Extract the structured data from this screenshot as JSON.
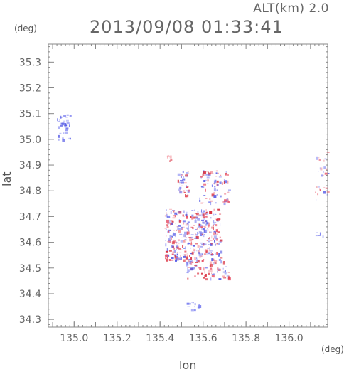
{
  "header": {
    "altitude": "ALT(km) 2.0",
    "datetime": "2013/09/08 01:33:41"
  },
  "axes": {
    "x_unit": "(deg)",
    "y_unit": "(deg)",
    "x_label": "lon",
    "y_label": "lat",
    "x_range": [
      134.88,
      136.18
    ],
    "y_range": [
      34.27,
      35.37
    ],
    "x_ticks": [
      "135.0",
      "135.2",
      "135.4",
      "135.6",
      "135.8",
      "136.0"
    ],
    "x_tick_values": [
      135.0,
      135.2,
      135.4,
      135.6,
      135.8,
      136.0
    ],
    "y_ticks": [
      "34.3",
      "34.4",
      "34.5",
      "34.6",
      "34.7",
      "34.8",
      "34.9",
      "35.0",
      "35.1",
      "35.2",
      "35.3"
    ],
    "y_tick_values": [
      34.3,
      34.4,
      34.5,
      34.6,
      34.7,
      34.8,
      34.9,
      35.0,
      35.1,
      35.2,
      35.3
    ]
  },
  "colors": {
    "positive": "#e8556a",
    "negative": "#7b7ff0",
    "axis": "#888888"
  },
  "echo_regions": [
    {
      "lon": [
        134.92,
        134.98
      ],
      "lat": [
        35.0,
        35.1
      ],
      "sign": "negative",
      "density": 40
    },
    {
      "lon": [
        135.48,
        135.53
      ],
      "lat": [
        34.78,
        34.88
      ],
      "sign": "mixed",
      "density": 45
    },
    {
      "lon": [
        135.43,
        135.45
      ],
      "lat": [
        34.9,
        34.94
      ],
      "sign": "positive",
      "density": 6
    },
    {
      "lon": [
        135.58,
        135.72
      ],
      "lat": [
        34.75,
        34.88
      ],
      "sign": "mixed",
      "density": 90
    },
    {
      "lon": [
        135.42,
        135.68
      ],
      "lat": [
        34.53,
        34.73
      ],
      "sign": "mixed",
      "density": 420
    },
    {
      "lon": [
        135.52,
        135.72
      ],
      "lat": [
        34.46,
        34.53
      ],
      "sign": "mixed",
      "density": 70
    },
    {
      "lon": [
        135.52,
        135.58
      ],
      "lat": [
        34.34,
        34.37
      ],
      "sign": "negative",
      "density": 12
    },
    {
      "lon": [
        136.12,
        136.18
      ],
      "lat": [
        34.75,
        34.95
      ],
      "sign": "mixed",
      "density": 30
    },
    {
      "lon": [
        136.12,
        136.16
      ],
      "lat": [
        34.62,
        34.64
      ],
      "sign": "negative",
      "density": 5
    }
  ]
}
